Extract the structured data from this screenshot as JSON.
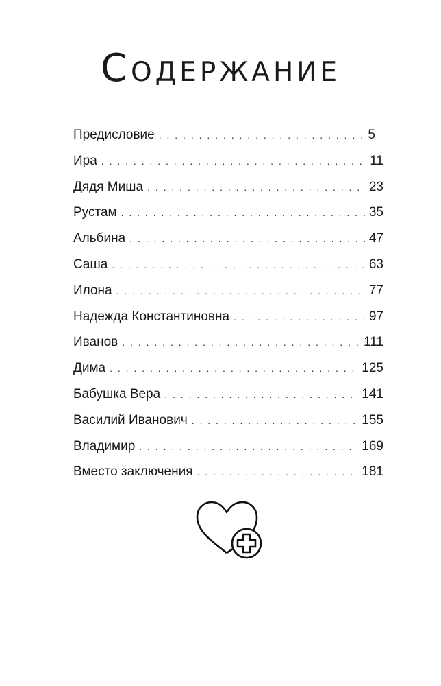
{
  "title": "Содержание",
  "entries": [
    {
      "label": "Предисловие",
      "page": "5"
    },
    {
      "label": "Ира",
      "page": "11"
    },
    {
      "label": "Дядя Миша",
      "page": "23"
    },
    {
      "label": "Рустам",
      "page": "35"
    },
    {
      "label": "Альбина",
      "page": "47"
    },
    {
      "label": "Саша",
      "page": "63"
    },
    {
      "label": "Илона",
      "page": "77"
    },
    {
      "label": "Надежда Константиновна",
      "page": "97"
    },
    {
      "label": "Иванов",
      "page": "111"
    },
    {
      "label": "Дима",
      "page": "125"
    },
    {
      "label": "Бабушка Вера",
      "page": "141"
    },
    {
      "label": "Василий Иванович",
      "page": "155"
    },
    {
      "label": "Владимир",
      "page": "169"
    },
    {
      "label": "Вместо заключения",
      "page": "181"
    }
  ],
  "ornament": {
    "icon": "heart-with-medical-cross-icon"
  }
}
